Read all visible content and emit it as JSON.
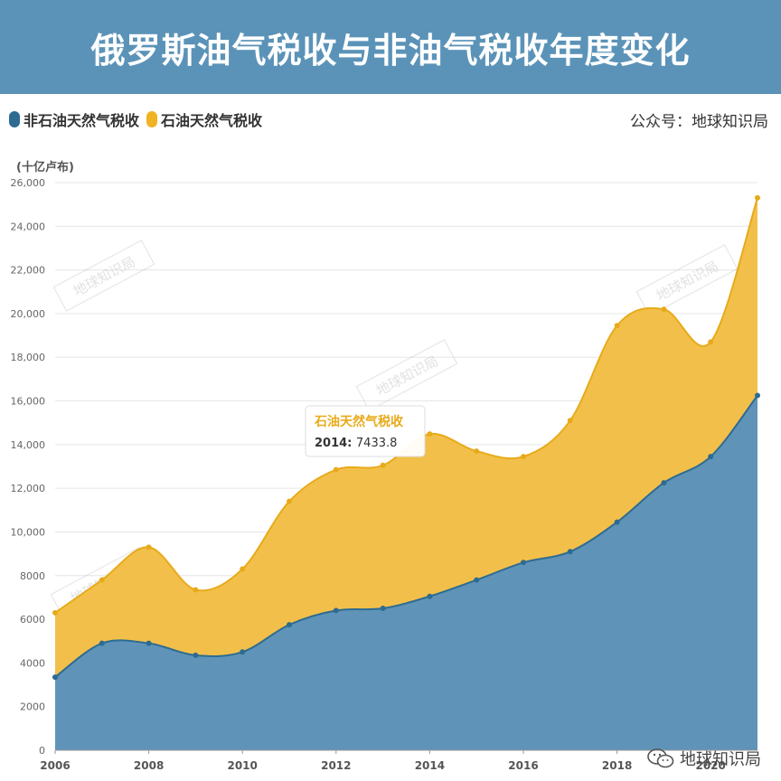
{
  "header": {
    "title": "俄罗斯油气税收与非油气税收年度变化"
  },
  "legend": {
    "items": [
      {
        "label": "非石油天然气税收",
        "color": "#2e6b92"
      },
      {
        "label": "石油天然气税收",
        "color": "#f0b323"
      }
    ]
  },
  "source_label": "公众号：地球知识局",
  "watermark_text": "地球知识局",
  "brand": {
    "label": "地球知识局",
    "icon": "wechat-icon"
  },
  "tooltip": {
    "series": "石油天然气税收",
    "year": "2014:",
    "value": "7433.8"
  },
  "chart_data": {
    "type": "area",
    "stacked": true,
    "title": "俄罗斯油气税收与非油气税收年度变化",
    "ylabel": "(十亿卢布)",
    "xlabel": "",
    "x": [
      2006,
      2007,
      2008,
      2009,
      2010,
      2011,
      2012,
      2013,
      2014,
      2015,
      2016,
      2017,
      2018,
      2019,
      2020,
      2021
    ],
    "series": [
      {
        "name": "非石油天然气税收",
        "color": "#2e6b92",
        "values": [
          3350,
          4900,
          4900,
          4350,
          4500,
          5750,
          6400,
          6500,
          7050,
          7800,
          8600,
          9100,
          10450,
          12250,
          13450,
          16250
        ]
      },
      {
        "name": "石油天然气税收",
        "color": "#f0b323",
        "values": [
          2950,
          2900,
          4400,
          3000,
          3800,
          5650,
          6450,
          6550,
          7433.8,
          5900,
          4850,
          6000,
          9000,
          7950,
          5250,
          9050
        ]
      }
    ],
    "xticks": [
      2006,
      2008,
      2010,
      2012,
      2014,
      2016,
      2018,
      2020
    ],
    "yticks": [
      0,
      2000,
      4000,
      6000,
      8000,
      10000,
      12000,
      14000,
      16000,
      18000,
      20000,
      22000,
      24000,
      26000
    ],
    "ytick_labels": [
      "0",
      "2000",
      "4000",
      "6000",
      "8000",
      "10,000",
      "12,000",
      "14,000",
      "16,000",
      "18,000",
      "20,000",
      "22,000",
      "24,000",
      "26,000"
    ],
    "ylim": [
      0,
      26000
    ],
    "grid": true,
    "legend_position": "top-left"
  }
}
